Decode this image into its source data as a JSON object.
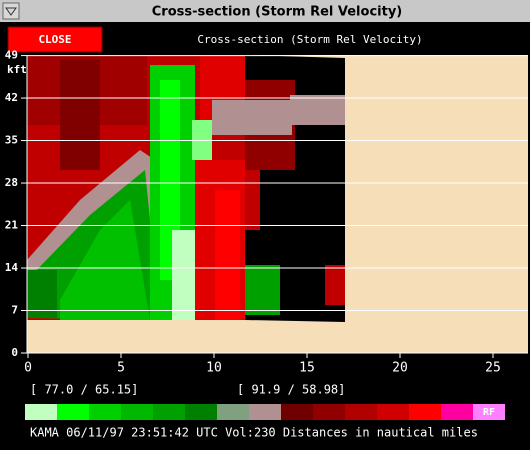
{
  "window": {
    "title": "Cross-section (Storm Rel Velocity)"
  },
  "toolbar": {
    "close_button": "CLOSE",
    "header": "Cross-section (Storm Rel Velocity)"
  },
  "y_axis": {
    "unit": "kft",
    "ticks": [
      0,
      7,
      14,
      21,
      28,
      35,
      42,
      49
    ]
  },
  "x_axis": {
    "ticks": [
      0,
      5,
      10,
      15,
      20,
      25
    ]
  },
  "coordinates": [
    "[ 77.0 /  65.15]",
    "[ 91.9 /  58.98]"
  ],
  "color_bar": {
    "colors": [
      "#c0ffc0",
      "#00ff00",
      "#00d000",
      "#00b800",
      "#00a000",
      "#008000",
      "#80a080",
      "#b09090",
      "#700000",
      "#900000",
      "#b00000",
      "#d00000",
      "#ff0000",
      "#ff00a0",
      "#ff80ff"
    ],
    "last_label": "RF"
  },
  "status": "KAMA 06/11/97 23:51:42 UTC Vol:230 Distances in nautical miles"
}
